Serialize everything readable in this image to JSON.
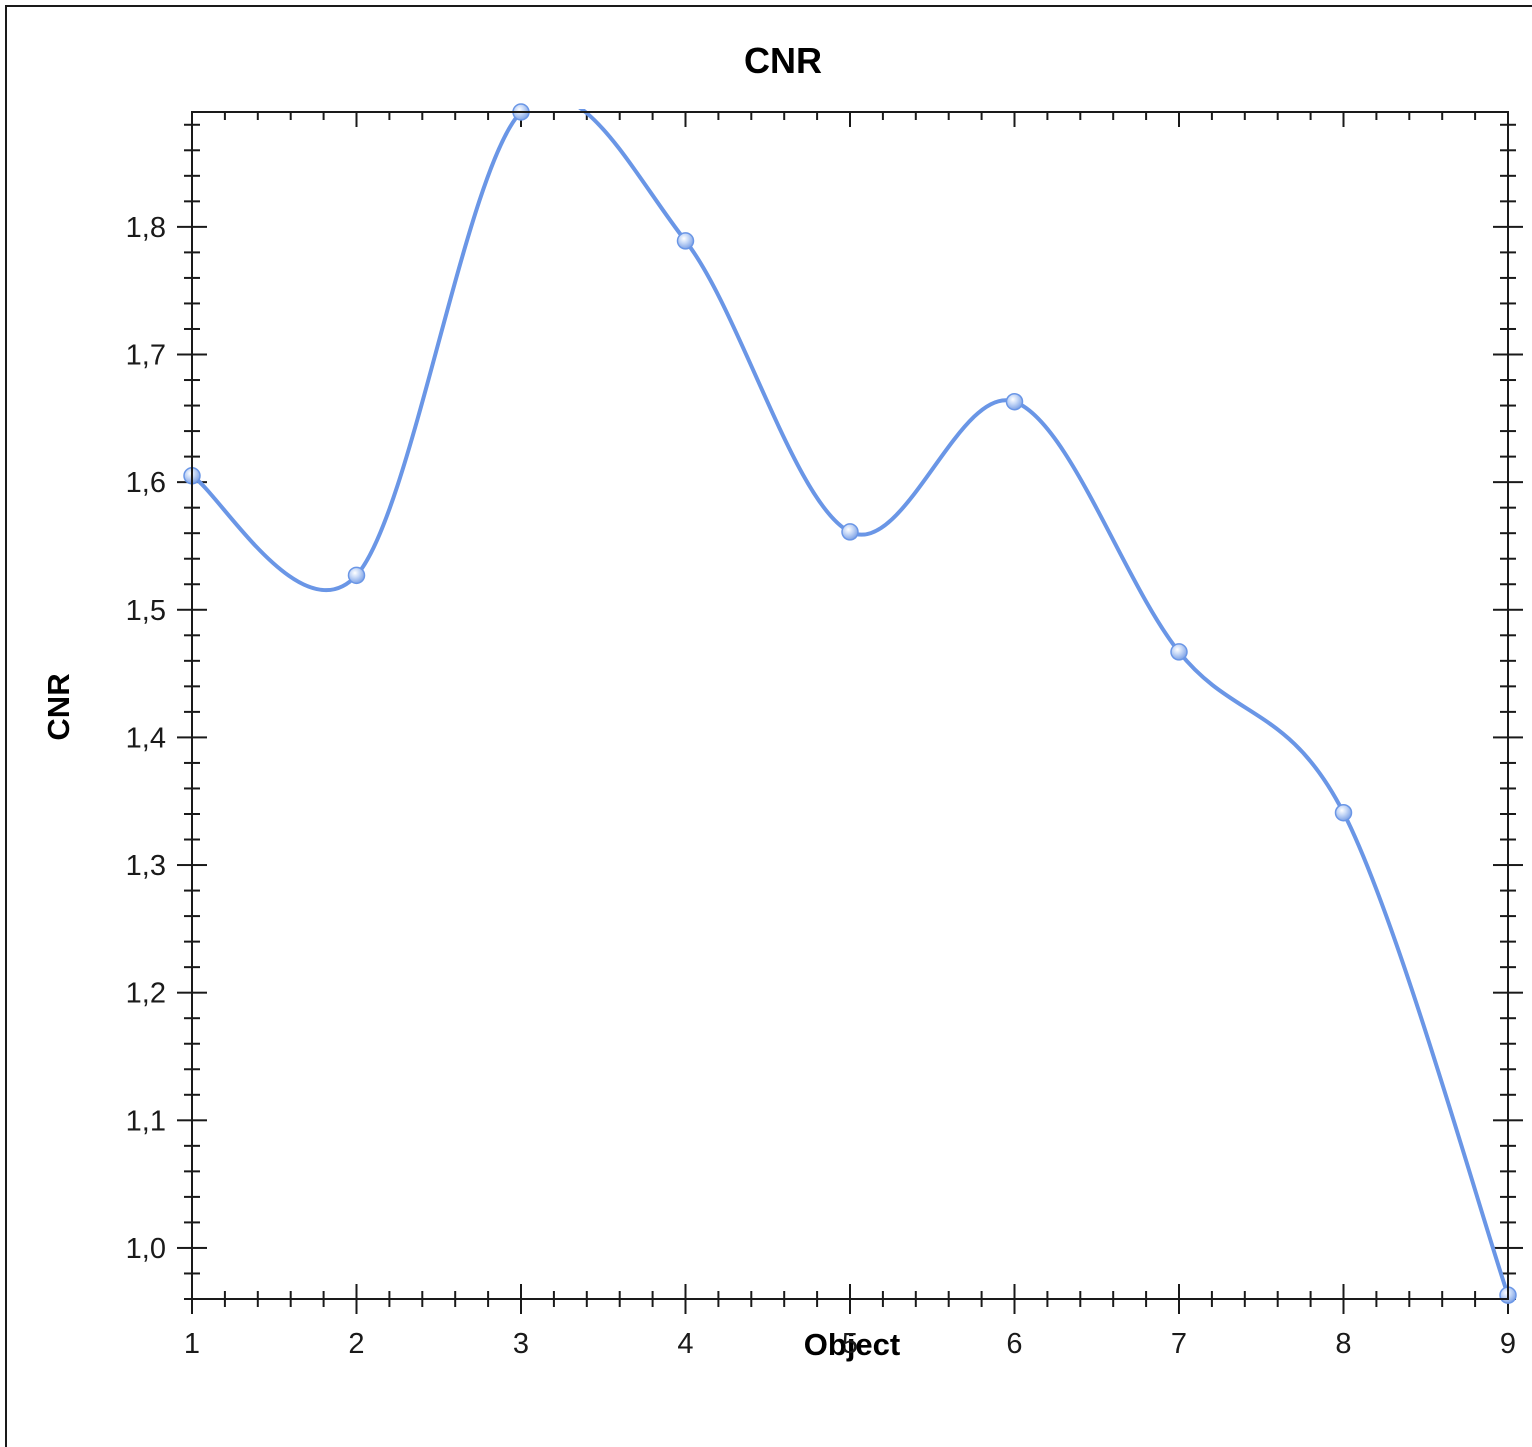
{
  "chart_data": {
    "type": "line",
    "title": "CNR",
    "xlabel": "Object",
    "ylabel": "CNR",
    "xlim": [
      1,
      9
    ],
    "ylim": [
      0.96,
      1.89
    ],
    "x_ticks": [
      "1",
      "2",
      "3",
      "4",
      "5",
      "6",
      "7",
      "8",
      "9"
    ],
    "y_ticks": [
      "1,0",
      "1,1",
      "1,2",
      "1,3",
      "1,4",
      "1,5",
      "1,6",
      "1,7",
      "1,8"
    ],
    "grid": false,
    "smooth": true,
    "series": [
      {
        "x": [
          1,
          2,
          3,
          4,
          5,
          6,
          7,
          8,
          9
        ],
        "values": [
          1.605,
          1.527,
          1.89,
          1.789,
          1.561,
          1.663,
          1.467,
          1.341,
          0.963
        ],
        "color": "#6a96e6",
        "marker_color": "#a8c4f2"
      }
    ]
  }
}
